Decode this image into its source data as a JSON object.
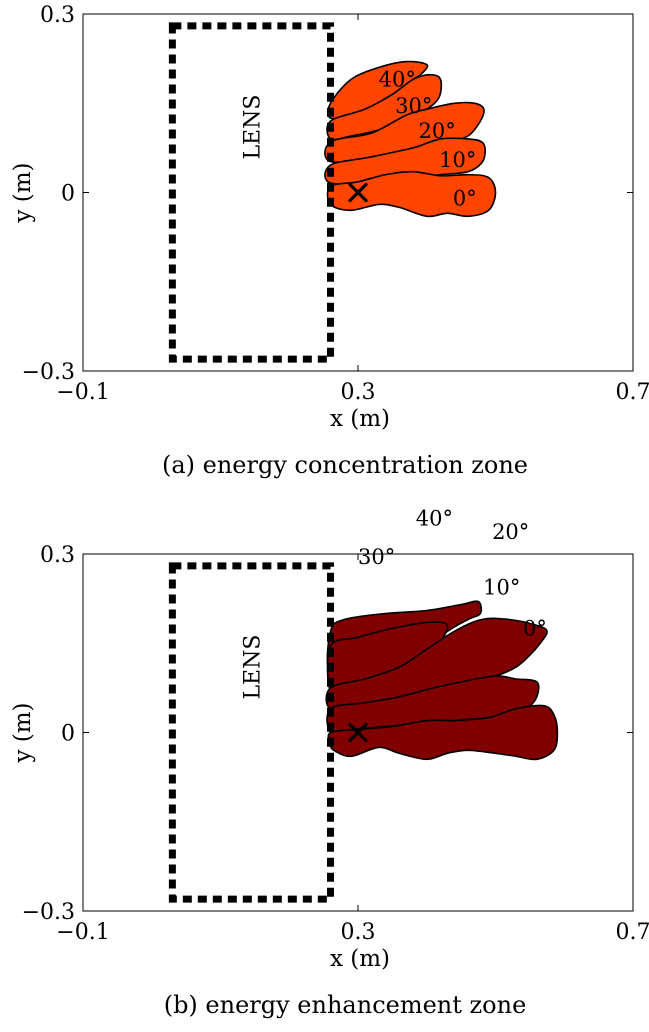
{
  "chart_data": [
    {
      "type": "area",
      "caption": "(a) energy concentration zone",
      "xlabel": "x (m)",
      "ylabel": "y (m)",
      "xlim": [
        -0.1,
        0.7
      ],
      "ylim": [
        -0.3,
        0.3
      ],
      "xticks": [
        "−0.1",
        "0.3",
        "0.7"
      ],
      "yticks": [
        "−0.3",
        "0",
        "0.3"
      ],
      "fill_color": "#ff4500",
      "lens": {
        "label": "LENS",
        "x": [
          0.03,
          0.26
        ],
        "y": [
          -0.28,
          0.28
        ]
      },
      "focus_marker": {
        "x": 0.3,
        "y": 0.0,
        "symbol": "×"
      },
      "series": [
        {
          "name": "40°",
          "label": "40°",
          "label_at": [
            0.33,
            0.19
          ],
          "polygon": [
            [
              0.26,
              0.15
            ],
            [
              0.29,
              0.19
            ],
            [
              0.33,
              0.21
            ],
            [
              0.37,
              0.22
            ],
            [
              0.4,
              0.215
            ],
            [
              0.393,
              0.2
            ],
            [
              0.38,
              0.19
            ],
            [
              0.36,
              0.17
            ],
            [
              0.33,
              0.15
            ],
            [
              0.29,
              0.13
            ],
            [
              0.26,
              0.125
            ]
          ]
        },
        {
          "name": "30°",
          "label": "30°",
          "label_at": [
            0.354,
            0.145
          ],
          "polygon": [
            [
              0.26,
              0.12
            ],
            [
              0.31,
              0.14
            ],
            [
              0.35,
              0.165
            ],
            [
              0.38,
              0.19
            ],
            [
              0.405,
              0.198
            ],
            [
              0.42,
              0.19
            ],
            [
              0.418,
              0.16
            ],
            [
              0.4,
              0.14
            ],
            [
              0.37,
              0.12
            ],
            [
              0.33,
              0.105
            ],
            [
              0.29,
              0.095
            ],
            [
              0.26,
              0.09
            ]
          ]
        },
        {
          "name": "20°",
          "label": "20°",
          "label_at": [
            0.388,
            0.103
          ],
          "polygon": [
            [
              0.26,
              0.085
            ],
            [
              0.32,
              0.1
            ],
            [
              0.37,
              0.13
            ],
            [
              0.4,
              0.14
            ],
            [
              0.44,
              0.15
            ],
            [
              0.47,
              0.15
            ],
            [
              0.483,
              0.14
            ],
            [
              0.478,
              0.12
            ],
            [
              0.46,
              0.095
            ],
            [
              0.43,
              0.085
            ],
            [
              0.38,
              0.07
            ],
            [
              0.33,
              0.06
            ],
            [
              0.26,
              0.052
            ]
          ]
        },
        {
          "name": "10°",
          "label": "10°",
          "label_at": [
            0.418,
            0.055
          ],
          "polygon": [
            [
              0.26,
              0.046
            ],
            [
              0.32,
              0.06
            ],
            [
              0.38,
              0.075
            ],
            [
              0.42,
              0.09
            ],
            [
              0.46,
              0.09
            ],
            [
              0.48,
              0.085
            ],
            [
              0.485,
              0.07
            ],
            [
              0.48,
              0.05
            ],
            [
              0.46,
              0.035
            ],
            [
              0.42,
              0.03
            ],
            [
              0.38,
              0.025
            ],
            [
              0.33,
              0.02
            ],
            [
              0.26,
              0.016
            ]
          ]
        },
        {
          "name": "0°",
          "label": "0°",
          "label_at": [
            0.438,
            -0.01
          ],
          "polygon": [
            [
              0.26,
              0.01
            ],
            [
              0.3,
              0.018
            ],
            [
              0.34,
              0.03
            ],
            [
              0.38,
              0.035
            ],
            [
              0.42,
              0.028
            ],
            [
              0.46,
              0.03
            ],
            [
              0.49,
              0.025
            ],
            [
              0.5,
              0.0
            ],
            [
              0.49,
              -0.03
            ],
            [
              0.46,
              -0.04
            ],
            [
              0.43,
              -0.035
            ],
            [
              0.4,
              -0.04
            ],
            [
              0.36,
              -0.025
            ],
            [
              0.33,
              -0.02
            ],
            [
              0.29,
              -0.03
            ],
            [
              0.26,
              -0.02
            ]
          ]
        }
      ]
    },
    {
      "type": "area",
      "caption": "(b) energy enhancement zone",
      "xlabel": "x (m)",
      "ylabel": "y (m)",
      "xlim": [
        -0.1,
        0.7
      ],
      "ylim": [
        -0.3,
        0.3
      ],
      "xticks": [
        "−0.1",
        "0.3",
        "0.7"
      ],
      "yticks": [
        "−0.3",
        "0",
        "0.3"
      ],
      "fill_color": "#800000",
      "lens": {
        "label": "LENS",
        "x": [
          0.03,
          0.26
        ],
        "y": [
          -0.28,
          0.28
        ]
      },
      "focus_marker": {
        "x": 0.3,
        "y": 0.0,
        "symbol": "×"
      },
      "series": [
        {
          "name": "40°",
          "label": "40°",
          "label_at": [
            0.384,
            0.36
          ],
          "polygon": [
            [
              0.26,
              0.17
            ],
            [
              0.28,
              0.19
            ],
            [
              0.34,
              0.2
            ],
            [
              0.4,
              0.205
            ],
            [
              0.45,
              0.215
            ],
            [
              0.475,
              0.22
            ],
            [
              0.478,
              0.2
            ],
            [
              0.46,
              0.19
            ],
            [
              0.43,
              0.17
            ],
            [
              0.4,
              0.14
            ],
            [
              0.36,
              0.12
            ],
            [
              0.31,
              0.11
            ],
            [
              0.26,
              0.1
            ]
          ]
        },
        {
          "name": "30°",
          "label": "30°",
          "label_at": [
            0.3,
            0.295
          ],
          "polygon": [
            [
              0.26,
              0.145
            ],
            [
              0.3,
              0.16
            ],
            [
              0.35,
              0.175
            ],
            [
              0.4,
              0.185
            ],
            [
              0.43,
              0.18
            ],
            [
              0.415,
              0.145
            ],
            [
              0.39,
              0.12
            ],
            [
              0.36,
              0.1
            ],
            [
              0.33,
              0.085
            ],
            [
              0.29,
              0.075
            ],
            [
              0.26,
              0.07
            ]
          ]
        },
        {
          "name": "20°",
          "label": "20°",
          "label_at": [
            0.495,
            0.337
          ],
          "polygon": [
            [
              0.26,
              0.075
            ],
            [
              0.31,
              0.09
            ],
            [
              0.36,
              0.11
            ],
            [
              0.4,
              0.14
            ],
            [
              0.44,
              0.17
            ],
            [
              0.48,
              0.19
            ],
            [
              0.52,
              0.19
            ],
            [
              0.56,
              0.18
            ],
            [
              0.575,
              0.17
            ],
            [
              0.565,
              0.15
            ],
            [
              0.55,
              0.13
            ],
            [
              0.53,
              0.11
            ],
            [
              0.5,
              0.095
            ],
            [
              0.46,
              0.085
            ],
            [
              0.41,
              0.07
            ],
            [
              0.36,
              0.055
            ],
            [
              0.31,
              0.045
            ],
            [
              0.26,
              0.04
            ]
          ]
        },
        {
          "name": "10°",
          "label": "10°",
          "label_at": [
            0.482,
            0.244
          ],
          "polygon": [
            [
              0.26,
              0.04
            ],
            [
              0.31,
              0.05
            ],
            [
              0.36,
              0.06
            ],
            [
              0.41,
              0.075
            ],
            [
              0.45,
              0.085
            ],
            [
              0.5,
              0.095
            ],
            [
              0.53,
              0.09
            ],
            [
              0.56,
              0.085
            ],
            [
              0.56,
              0.06
            ],
            [
              0.545,
              0.04
            ],
            [
              0.52,
              0.03
            ],
            [
              0.49,
              0.025
            ],
            [
              0.44,
              0.02
            ],
            [
              0.39,
              0.015
            ],
            [
              0.34,
              0.01
            ],
            [
              0.29,
              0.005
            ],
            [
              0.26,
              0.0
            ]
          ]
        },
        {
          "name": "0°",
          "label": "0°",
          "label_at": [
            0.54,
            0.175
          ],
          "polygon": [
            [
              0.26,
              0.0
            ],
            [
              0.3,
              0.005
            ],
            [
              0.35,
              0.01
            ],
            [
              0.4,
              0.02
            ],
            [
              0.44,
              0.02
            ],
            [
              0.49,
              0.025
            ],
            [
              0.53,
              0.04
            ],
            [
              0.57,
              0.045
            ],
            [
              0.585,
              0.03
            ],
            [
              0.59,
              0.0
            ],
            [
              0.585,
              -0.03
            ],
            [
              0.56,
              -0.045
            ],
            [
              0.53,
              -0.04
            ],
            [
              0.5,
              -0.035
            ],
            [
              0.46,
              -0.03
            ],
            [
              0.43,
              -0.035
            ],
            [
              0.4,
              -0.045
            ],
            [
              0.36,
              -0.035
            ],
            [
              0.33,
              -0.025
            ],
            [
              0.29,
              -0.04
            ],
            [
              0.265,
              -0.03
            ],
            [
              0.26,
              -0.02
            ]
          ]
        }
      ]
    }
  ]
}
